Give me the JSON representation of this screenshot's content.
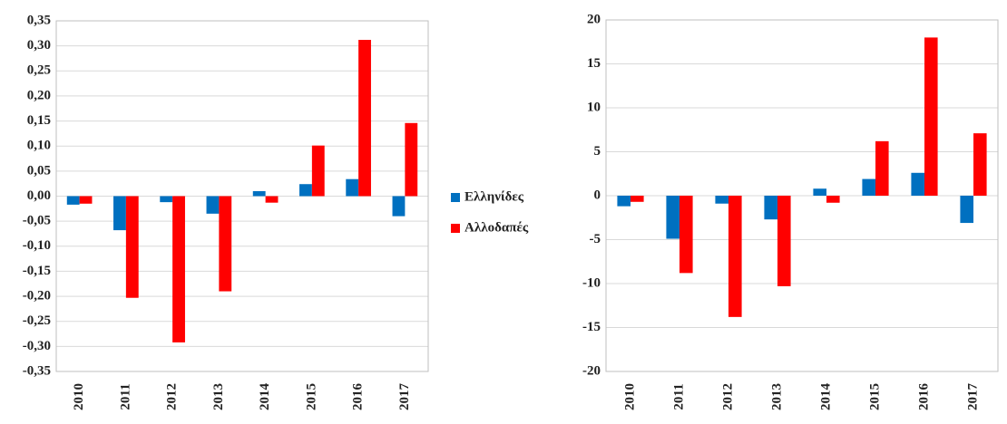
{
  "chart_data": [
    {
      "type": "bar",
      "categories": [
        "2010",
        "2011",
        "2012",
        "2013",
        "2014",
        "2015",
        "2016",
        "2017"
      ],
      "series": [
        {
          "name": "Ελληνίδες",
          "color": "#0070c0",
          "values": [
            -0.017,
            -0.068,
            -0.012,
            -0.035,
            0.01,
            0.024,
            0.034,
            -0.04
          ]
        },
        {
          "name": "Αλλοδαπές",
          "color": "#ff0000",
          "values": [
            -0.015,
            -0.203,
            -0.292,
            -0.19,
            -0.013,
            0.101,
            0.312,
            0.146
          ]
        }
      ],
      "ylim": [
        -0.35,
        0.35
      ],
      "yticks": [
        {
          "value": -0.35,
          "label": "-0,35"
        },
        {
          "value": -0.3,
          "label": "-0,30"
        },
        {
          "value": -0.25,
          "label": "-0,25"
        },
        {
          "value": -0.2,
          "label": "-0,20"
        },
        {
          "value": -0.15,
          "label": "-0,15"
        },
        {
          "value": -0.1,
          "label": "-0,10"
        },
        {
          "value": -0.05,
          "label": "-0,05"
        },
        {
          "value": 0,
          "label": "0,00"
        },
        {
          "value": 0.05,
          "label": "0,05"
        },
        {
          "value": 0.1,
          "label": "0,10"
        },
        {
          "value": 0.15,
          "label": "0,15"
        },
        {
          "value": 0.2,
          "label": "0,20"
        },
        {
          "value": 0.25,
          "label": "0,25"
        },
        {
          "value": 0.3,
          "label": "0,30"
        },
        {
          "value": 0.35,
          "label": "0,35"
        }
      ],
      "grid": true,
      "legend": "right"
    },
    {
      "type": "bar",
      "categories": [
        "2010",
        "2011",
        "2012",
        "2013",
        "2014",
        "2015",
        "2016",
        "2017"
      ],
      "series": [
        {
          "color": "#0070c0",
          "values": [
            -1.2,
            -4.9,
            -0.9,
            -2.7,
            0.8,
            1.9,
            2.6,
            -3.1
          ]
        },
        {
          "color": "#ff0000",
          "values": [
            -0.7,
            -8.8,
            -13.8,
            -10.3,
            -0.8,
            6.2,
            18.0,
            7.1
          ]
        }
      ],
      "ylim": [
        -20,
        20
      ],
      "yticks": [
        -20,
        -15,
        -10,
        -5,
        0,
        5,
        10,
        15,
        20
      ],
      "grid": true
    }
  ]
}
